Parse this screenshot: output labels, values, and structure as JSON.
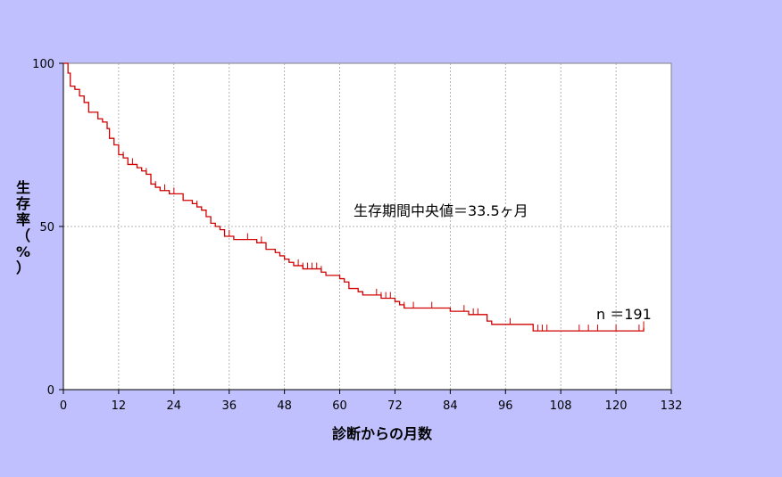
{
  "chart_data": {
    "type": "line",
    "title": "",
    "xlabel": "診断からの月数",
    "ylabel": "生存率（%）",
    "ylabel_chars": [
      "生",
      "存",
      "率",
      "（",
      "%",
      "）"
    ],
    "xlim": [
      0,
      132
    ],
    "ylim": [
      0,
      100
    ],
    "xticks": [
      0,
      12,
      24,
      36,
      48,
      60,
      72,
      84,
      96,
      108,
      120,
      132
    ],
    "yticks": [
      0,
      50,
      100
    ],
    "grid": true,
    "line_color": "#d00000",
    "plot_background": "#ffffff",
    "annotations": {
      "median": "生存期間中央値＝33.5ヶ月",
      "n": "n ＝191"
    },
    "series": [
      {
        "step": [
          [
            0,
            100
          ],
          [
            1,
            97
          ],
          [
            1.5,
            93
          ],
          [
            2.5,
            92
          ],
          [
            3.5,
            90
          ],
          [
            4.5,
            88
          ],
          [
            5.5,
            85
          ],
          [
            7.5,
            83
          ],
          [
            8.5,
            82
          ],
          [
            9.5,
            80
          ],
          [
            10,
            77
          ],
          [
            11,
            75
          ],
          [
            12,
            72
          ],
          [
            13,
            71
          ],
          [
            14,
            69
          ],
          [
            16,
            68
          ],
          [
            17,
            67
          ],
          [
            18,
            66
          ],
          [
            19,
            63
          ],
          [
            20,
            62
          ],
          [
            21,
            61
          ],
          [
            23,
            60
          ],
          [
            26,
            58
          ],
          [
            28,
            57
          ],
          [
            29,
            56
          ],
          [
            30,
            55
          ],
          [
            31,
            53
          ],
          [
            32,
            51
          ],
          [
            33,
            50
          ],
          [
            34,
            49
          ],
          [
            35,
            47
          ],
          [
            37,
            46
          ],
          [
            42,
            45
          ],
          [
            44,
            43
          ],
          [
            46,
            42
          ],
          [
            47,
            41
          ],
          [
            48,
            40
          ],
          [
            49,
            39
          ],
          [
            50,
            38
          ],
          [
            52,
            37
          ],
          [
            56,
            36
          ],
          [
            57,
            35
          ],
          [
            60,
            34
          ],
          [
            61,
            33
          ],
          [
            62,
            31
          ],
          [
            64,
            30
          ],
          [
            65,
            29
          ],
          [
            69,
            28
          ],
          [
            72,
            27
          ],
          [
            73,
            26
          ],
          [
            74,
            25
          ],
          [
            84,
            24
          ],
          [
            88,
            23
          ],
          [
            92,
            21
          ],
          [
            93,
            20
          ],
          [
            102,
            18
          ],
          [
            126,
            19
          ]
        ],
        "censor": [
          13,
          15,
          18,
          20,
          22,
          24,
          29,
          36,
          40,
          43,
          51,
          52,
          53,
          54,
          55,
          56,
          68,
          69,
          70,
          71,
          74,
          76,
          80,
          87,
          89,
          90,
          97,
          103,
          104,
          105,
          112,
          114,
          116,
          120,
          125,
          126
        ]
      }
    ]
  }
}
